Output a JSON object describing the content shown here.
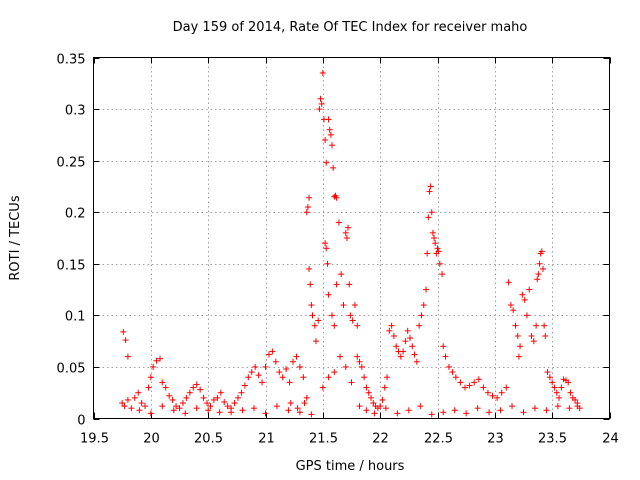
{
  "chart_data": {
    "type": "scatter",
    "title": "Day 159 of 2014, Rate Of TEC Index for receiver maho",
    "xlabel": "GPS time / hours",
    "ylabel": "ROTI / TECUs",
    "xlim": [
      19.5,
      24
    ],
    "ylim": [
      0,
      0.35
    ],
    "xticks": [
      "19.5",
      "20",
      "20.5",
      "21",
      "21.5",
      "22",
      "22.5",
      "23",
      "23.5",
      "24"
    ],
    "yticks": [
      "0",
      "0.05",
      "0.1",
      "0.15",
      "0.2",
      "0.25",
      "0.3",
      "0.35"
    ],
    "grid": true,
    "marker": "+",
    "color": "#ff0000",
    "series": [
      {
        "name": "ROTI",
        "points": [
          [
            19.76,
            0.084
          ],
          [
            19.78,
            0.076
          ],
          [
            19.8,
            0.06
          ],
          [
            19.75,
            0.015
          ],
          [
            19.77,
            0.012
          ],
          [
            19.8,
            0.018
          ],
          [
            19.83,
            0.01
          ],
          [
            19.86,
            0.02
          ],
          [
            19.89,
            0.025
          ],
          [
            19.92,
            0.015
          ],
          [
            19.95,
            0.012
          ],
          [
            19.98,
            0.03
          ],
          [
            20.0,
            0.04
          ],
          [
            20.02,
            0.05
          ],
          [
            20.05,
            0.056
          ],
          [
            20.08,
            0.058
          ],
          [
            20.1,
            0.035
          ],
          [
            20.13,
            0.03
          ],
          [
            20.16,
            0.022
          ],
          [
            20.19,
            0.018
          ],
          [
            20.22,
            0.012
          ],
          [
            20.25,
            0.01
          ],
          [
            20.28,
            0.015
          ],
          [
            20.31,
            0.02
          ],
          [
            20.34,
            0.025
          ],
          [
            20.37,
            0.03
          ],
          [
            20.4,
            0.033
          ],
          [
            20.43,
            0.028
          ],
          [
            20.46,
            0.02
          ],
          [
            20.49,
            0.015
          ],
          [
            20.52,
            0.012
          ],
          [
            20.55,
            0.018
          ],
          [
            20.58,
            0.02
          ],
          [
            20.61,
            0.025
          ],
          [
            20.64,
            0.016
          ],
          [
            20.67,
            0.012
          ],
          [
            20.7,
            0.01
          ],
          [
            20.73,
            0.015
          ],
          [
            20.76,
            0.02
          ],
          [
            20.79,
            0.025
          ],
          [
            20.82,
            0.032
          ],
          [
            20.85,
            0.04
          ],
          [
            20.88,
            0.045
          ],
          [
            20.91,
            0.05
          ],
          [
            20.94,
            0.042
          ],
          [
            20.97,
            0.035
          ],
          [
            21.0,
            0.05
          ],
          [
            21.03,
            0.062
          ],
          [
            21.06,
            0.065
          ],
          [
            21.09,
            0.055
          ],
          [
            21.12,
            0.045
          ],
          [
            21.15,
            0.04
          ],
          [
            21.18,
            0.048
          ],
          [
            21.21,
            0.035
          ],
          [
            21.24,
            0.055
          ],
          [
            21.27,
            0.06
          ],
          [
            21.3,
            0.05
          ],
          [
            21.33,
            0.04
          ],
          [
            21.36,
            0.02
          ],
          [
            21.36,
            0.2
          ],
          [
            21.37,
            0.205
          ],
          [
            21.38,
            0.214
          ],
          [
            21.38,
            0.145
          ],
          [
            21.39,
            0.13
          ],
          [
            21.4,
            0.11
          ],
          [
            21.41,
            0.1
          ],
          [
            21.43,
            0.09
          ],
          [
            21.44,
            0.075
          ],
          [
            21.46,
            0.095
          ],
          [
            21.47,
            0.3
          ],
          [
            21.48,
            0.31
          ],
          [
            21.49,
            0.305
          ],
          [
            21.5,
            0.335
          ],
          [
            21.51,
            0.29
          ],
          [
            21.52,
            0.27
          ],
          [
            21.53,
            0.248
          ],
          [
            21.52,
            0.17
          ],
          [
            21.53,
            0.165
          ],
          [
            21.54,
            0.15
          ],
          [
            21.55,
            0.29
          ],
          [
            21.56,
            0.28
          ],
          [
            21.57,
            0.275
          ],
          [
            21.58,
            0.265
          ],
          [
            21.59,
            0.243
          ],
          [
            21.6,
            0.215
          ],
          [
            21.61,
            0.216
          ],
          [
            21.62,
            0.214
          ],
          [
            21.55,
            0.12
          ],
          [
            21.58,
            0.1
          ],
          [
            21.6,
            0.09
          ],
          [
            21.62,
            0.13
          ],
          [
            21.64,
            0.19
          ],
          [
            21.66,
            0.14
          ],
          [
            21.68,
            0.11
          ],
          [
            21.7,
            0.18
          ],
          [
            21.71,
            0.175
          ],
          [
            21.72,
            0.185
          ],
          [
            21.73,
            0.13
          ],
          [
            21.74,
            0.1
          ],
          [
            21.76,
            0.095
          ],
          [
            21.78,
            0.11
          ],
          [
            21.8,
            0.09
          ],
          [
            21.8,
            0.06
          ],
          [
            21.82,
            0.055
          ],
          [
            21.84,
            0.05
          ],
          [
            21.86,
            0.04
          ],
          [
            21.88,
            0.03
          ],
          [
            21.9,
            0.025
          ],
          [
            21.92,
            0.02
          ],
          [
            21.94,
            0.015
          ],
          [
            21.96,
            0.012
          ],
          [
            21.98,
            0.01
          ],
          [
            22.0,
            0.012
          ],
          [
            22.02,
            0.018
          ],
          [
            22.04,
            0.03
          ],
          [
            22.06,
            0.04
          ],
          [
            22.08,
            0.085
          ],
          [
            22.1,
            0.09
          ],
          [
            22.12,
            0.08
          ],
          [
            22.14,
            0.07
          ],
          [
            22.16,
            0.065
          ],
          [
            22.18,
            0.06
          ],
          [
            22.2,
            0.065
          ],
          [
            22.22,
            0.075
          ],
          [
            22.24,
            0.085
          ],
          [
            22.26,
            0.078
          ],
          [
            22.28,
            0.07
          ],
          [
            22.3,
            0.062
          ],
          [
            22.32,
            0.055
          ],
          [
            22.34,
            0.09
          ],
          [
            22.36,
            0.1
          ],
          [
            22.38,
            0.11
          ],
          [
            22.4,
            0.125
          ],
          [
            22.41,
            0.16
          ],
          [
            22.42,
            0.195
          ],
          [
            22.43,
            0.22
          ],
          [
            22.44,
            0.225
          ],
          [
            22.45,
            0.2
          ],
          [
            22.46,
            0.18
          ],
          [
            22.47,
            0.175
          ],
          [
            22.48,
            0.17
          ],
          [
            22.49,
            0.16
          ],
          [
            22.5,
            0.165
          ],
          [
            22.51,
            0.162
          ],
          [
            22.52,
            0.15
          ],
          [
            22.54,
            0.14
          ],
          [
            22.55,
            0.07
          ],
          [
            22.57,
            0.06
          ],
          [
            22.6,
            0.05
          ],
          [
            22.63,
            0.045
          ],
          [
            22.66,
            0.04
          ],
          [
            22.7,
            0.035
          ],
          [
            22.74,
            0.03
          ],
          [
            22.78,
            0.032
          ],
          [
            22.82,
            0.035
          ],
          [
            22.86,
            0.038
          ],
          [
            22.9,
            0.03
          ],
          [
            22.94,
            0.025
          ],
          [
            22.98,
            0.022
          ],
          [
            23.02,
            0.02
          ],
          [
            23.06,
            0.025
          ],
          [
            23.1,
            0.03
          ],
          [
            23.12,
            0.132
          ],
          [
            23.14,
            0.11
          ],
          [
            23.16,
            0.105
          ],
          [
            23.18,
            0.09
          ],
          [
            23.2,
            0.08
          ],
          [
            23.21,
            0.06
          ],
          [
            23.22,
            0.07
          ],
          [
            23.24,
            0.12
          ],
          [
            23.26,
            0.115
          ],
          [
            23.28,
            0.1
          ],
          [
            23.3,
            0.125
          ],
          [
            23.32,
            0.08
          ],
          [
            23.34,
            0.075
          ],
          [
            23.36,
            0.09
          ],
          [
            23.37,
            0.135
          ],
          [
            23.38,
            0.14
          ],
          [
            23.39,
            0.15
          ],
          [
            23.4,
            0.16
          ],
          [
            23.41,
            0.162
          ],
          [
            23.42,
            0.145
          ],
          [
            23.43,
            0.09
          ],
          [
            23.44,
            0.08
          ],
          [
            23.46,
            0.045
          ],
          [
            23.48,
            0.04
          ],
          [
            23.5,
            0.035
          ],
          [
            23.52,
            0.03
          ],
          [
            23.54,
            0.025
          ],
          [
            23.56,
            0.02
          ],
          [
            23.58,
            0.03
          ],
          [
            23.6,
            0.038
          ],
          [
            23.62,
            0.037
          ],
          [
            23.64,
            0.035
          ],
          [
            23.66,
            0.025
          ],
          [
            23.68,
            0.02
          ],
          [
            23.7,
            0.018
          ],
          [
            23.72,
            0.012
          ],
          [
            23.74,
            0.01
          ],
          [
            21.2,
            0.008
          ],
          [
            21.3,
            0.006
          ],
          [
            21.4,
            0.004
          ],
          [
            21.5,
            0.03
          ],
          [
            21.55,
            0.04
          ],
          [
            21.6,
            0.045
          ],
          [
            21.65,
            0.06
          ],
          [
            21.7,
            0.05
          ],
          [
            21.75,
            0.035
          ],
          [
            21.82,
            0.012
          ],
          [
            21.88,
            0.008
          ],
          [
            21.95,
            0.005
          ],
          [
            22.05,
            0.01
          ],
          [
            22.15,
            0.005
          ],
          [
            22.25,
            0.008
          ],
          [
            22.35,
            0.012
          ],
          [
            22.45,
            0.004
          ],
          [
            22.55,
            0.006
          ],
          [
            22.65,
            0.008
          ],
          [
            22.75,
            0.005
          ],
          [
            22.85,
            0.01
          ],
          [
            22.95,
            0.006
          ],
          [
            23.05,
            0.008
          ],
          [
            23.15,
            0.012
          ],
          [
            23.25,
            0.006
          ],
          [
            23.35,
            0.01
          ],
          [
            23.45,
            0.008
          ],
          [
            23.55,
            0.012
          ],
          [
            23.65,
            0.01
          ],
          [
            23.72,
            0.015
          ],
          [
            20.0,
            0.005
          ],
          [
            20.2,
            0.008
          ],
          [
            20.4,
            0.01
          ],
          [
            20.6,
            0.006
          ],
          [
            20.8,
            0.008
          ],
          [
            21.0,
            0.005
          ],
          [
            19.9,
            0.008
          ],
          [
            20.1,
            0.012
          ],
          [
            20.3,
            0.005
          ],
          [
            20.5,
            0.008
          ],
          [
            20.7,
            0.006
          ],
          [
            20.9,
            0.01
          ],
          [
            21.1,
            0.012
          ],
          [
            21.22,
            0.015
          ],
          [
            21.28,
            0.01
          ],
          [
            21.34,
            0.015
          ]
        ]
      }
    ]
  }
}
